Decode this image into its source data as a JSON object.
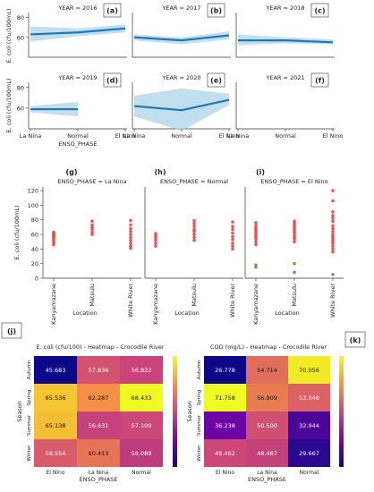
{
  "chart_data": [
    {
      "id": "a-f",
      "type": "line",
      "facet_by": "YEAR",
      "x_label": "ENSO_PHASE",
      "y_label": "E. coli (cfu/100mL)",
      "categories": [
        "La Nina",
        "Normal",
        "El Nino"
      ],
      "panels": [
        {
          "letter": "(a)",
          "title": "YEAR = 2016",
          "values": [
            63,
            65,
            69
          ],
          "ci_low": [
            56,
            61,
            65
          ],
          "ci_high": [
            71,
            69,
            73
          ]
        },
        {
          "letter": "(b)",
          "title": "YEAR = 2017",
          "values": [
            60,
            57,
            62
          ],
          "ci_low": [
            57,
            53,
            58
          ],
          "ci_high": [
            63,
            60,
            66
          ]
        },
        {
          "letter": "(c)",
          "title": "YEAR = 2018",
          "values": [
            57,
            57,
            55
          ],
          "ci_low": [
            52,
            54,
            53
          ],
          "ci_high": [
            63,
            60,
            58
          ]
        },
        {
          "letter": "(d)",
          "title": "YEAR = 2019",
          "values": [
            59,
            59,
            null
          ],
          "ci_low": [
            56,
            52,
            null
          ],
          "ci_high": [
            62,
            66,
            null
          ]
        },
        {
          "letter": "(e)",
          "title": "YEAR = 2020",
          "values": [
            62,
            58,
            68
          ],
          "ci_low": [
            52,
            38,
            63
          ],
          "ci_high": [
            72,
            79,
            74
          ]
        },
        {
          "letter": "(f)",
          "title": "YEAR = 2021",
          "values": [
            null,
            null,
            null
          ],
          "ci_low": [
            null,
            null,
            null
          ],
          "ci_high": [
            null,
            null,
            null
          ]
        }
      ],
      "y_ticks": [
        60,
        80
      ],
      "ylim": [
        40,
        85
      ]
    },
    {
      "id": "g-i",
      "type": "scatter",
      "facet_by": "ENSO_PHASE",
      "x_label": "Location",
      "y_label": "E. coli (cfu/100mL)",
      "categories": [
        "Kanyamazane",
        "Matsulu",
        "White River"
      ],
      "y_ticks": [
        0,
        20,
        40,
        60,
        80,
        100,
        120
      ],
      "ylim": [
        0,
        125
      ],
      "panels": [
        {
          "letter": "(g)",
          "title": "ENSO_PHASE = La Nina",
          "points": [
            [
              [
                46,
                49,
                52,
                55,
                57,
                59,
                61,
                63
              ],
              "red"
            ],
            [
              [
                60,
                63,
                67,
                70,
                73,
                78
              ],
              "red"
            ],
            [
              [
                41,
                44,
                48,
                52,
                56,
                60,
                64,
                68,
                73,
                79
              ],
              "red"
            ]
          ]
        },
        {
          "letter": "(h)",
          "title": "ENSO_PHASE = Normal",
          "points": [
            [
              [
                44,
                48,
                52,
                55,
                58,
                61
              ],
              "red"
            ],
            [
              [
                52,
                56,
                60,
                64,
                67,
                71,
                75,
                79
              ],
              "red"
            ],
            [
              [
                40,
                44,
                48,
                53,
                57,
                62,
                67,
                71,
                77
              ],
              "red"
            ]
          ]
        },
        {
          "letter": "(i)",
          "title": "ENSO_PHASE = El Nino",
          "points": [
            [
              [
                46,
                50,
                54,
                57,
                60,
                63,
                66,
                69,
                72,
                76
              ],
              "red",
              [
                15,
                18
              ],
              "olive"
            ],
            [
              [
                50,
                54,
                57,
                60,
                63,
                66,
                69,
                72,
                75,
                78
              ],
              "red",
              [
                8,
                20
              ],
              "olive"
            ],
            [
              [
                36,
                40,
                44,
                48,
                51,
                54,
                57,
                60,
                64,
                68,
                72,
                78,
                82,
                86,
                91,
                106,
                120
              ],
              "red",
              [
                5
              ],
              "olive"
            ]
          ]
        }
      ]
    },
    {
      "id": "j",
      "type": "heatmap",
      "letter": "(j)",
      "title": "E. coli (cfu/100) - Heatmap - Crocodile River",
      "x_label": "ENSO_PHASE",
      "y_label": "Season",
      "x_categories": [
        "El Nino",
        "La Nina",
        "Normal"
      ],
      "y_categories": [
        "Autumn",
        "Spring",
        "Summer",
        "Winter"
      ],
      "values": [
        [
          45.683,
          57.836,
          56.822
        ],
        [
          65.536,
          62.287,
          68.433
        ],
        [
          65.138,
          56.631,
          57.1
        ],
        [
          58.554,
          60.413,
          56.089
        ]
      ],
      "labels": [
        [
          "45.683",
          "57.836",
          "56.822"
        ],
        [
          "65.536",
          "62.287",
          "68.433"
        ],
        [
          "65.138",
          "56.631",
          "57.100"
        ],
        [
          "58.554",
          "60.413",
          "56.089"
        ]
      ],
      "colormap": "plasma"
    },
    {
      "id": "k",
      "type": "heatmap",
      "letter": "(k)",
      "title": "COD (mg/L) - Heatmap - Crocodile River",
      "x_label": "ENSO_PHASE",
      "y_label": "Season",
      "x_categories": [
        "El Nino",
        "La Nina",
        "Normal"
      ],
      "y_categories": [
        "Autumn",
        "Spring",
        "Summer",
        "Winter"
      ],
      "values": [
        [
          26.778,
          54.714,
          70.056
        ],
        [
          71.758,
          56.909,
          53.048
        ],
        [
          36.238,
          50.5,
          32.944
        ],
        [
          49.462,
          48.467,
          29.667
        ]
      ],
      "labels": [
        [
          "26.778",
          "54.714",
          "70.056"
        ],
        [
          "71.758",
          "56.909",
          "53.048"
        ],
        [
          "36.238",
          "50.500",
          "32.944"
        ],
        [
          "49.462",
          "48.467",
          "29.667"
        ]
      ],
      "colormap": "plasma"
    }
  ],
  "colors": {
    "line": "#1f77b4",
    "band": "#aed4ea",
    "point": "#e8383d",
    "point_low": "#8a7a2a",
    "axis": "#333333",
    "text": "#222222"
  }
}
